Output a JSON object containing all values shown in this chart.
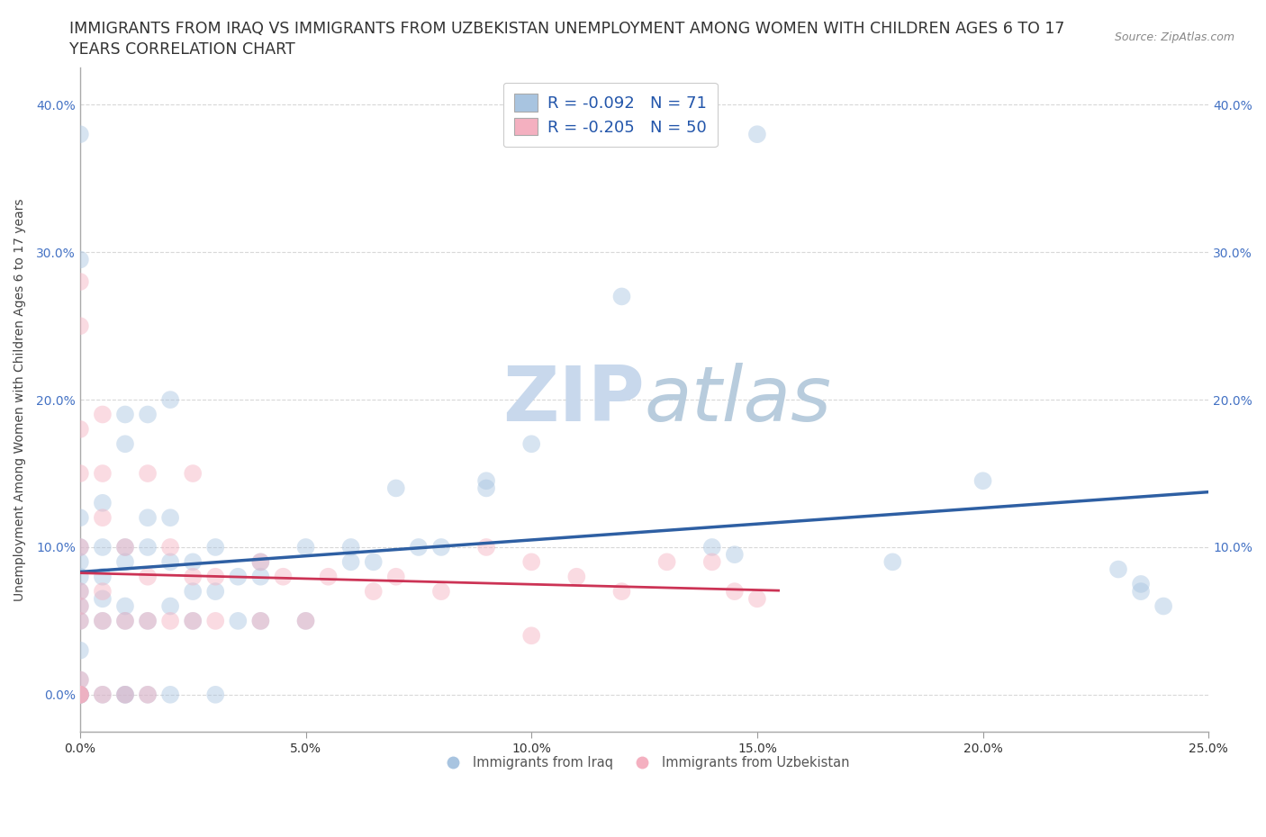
{
  "title_line1": "IMMIGRANTS FROM IRAQ VS IMMIGRANTS FROM UZBEKISTAN UNEMPLOYMENT AMONG WOMEN WITH CHILDREN AGES 6 TO 17",
  "title_line2": "YEARS CORRELATION CHART",
  "source_text": "Source: ZipAtlas.com",
  "ylabel": "Unemployment Among Women with Children Ages 6 to 17 years",
  "iraq_R": -0.092,
  "iraq_N": 71,
  "uzbekistan_R": -0.205,
  "uzbekistan_N": 50,
  "iraq_color": "#a8c4e0",
  "iraq_line_color": "#2e5fa3",
  "uzbekistan_color": "#f4b0c0",
  "uzbekistan_line_color": "#cc3355",
  "watermark_zip": "ZIP",
  "watermark_atlas": "atlas",
  "xmin": 0.0,
  "xmax": 0.25,
  "ymin": -0.025,
  "ymax": 0.425,
  "iraq_x": [
    0.0,
    0.0,
    0.0,
    0.0,
    0.0,
    0.0,
    0.0,
    0.0,
    0.0,
    0.0,
    0.0,
    0.0,
    0.0,
    0.0,
    0.0,
    0.005,
    0.005,
    0.005,
    0.005,
    0.005,
    0.005,
    0.01,
    0.01,
    0.01,
    0.01,
    0.01,
    0.01,
    0.01,
    0.01,
    0.015,
    0.015,
    0.015,
    0.015,
    0.015,
    0.02,
    0.02,
    0.02,
    0.02,
    0.02,
    0.025,
    0.025,
    0.025,
    0.03,
    0.03,
    0.03,
    0.035,
    0.035,
    0.04,
    0.04,
    0.04,
    0.05,
    0.05,
    0.06,
    0.06,
    0.065,
    0.07,
    0.075,
    0.08,
    0.09,
    0.09,
    0.1,
    0.12,
    0.14,
    0.145,
    0.15,
    0.18,
    0.2,
    0.23,
    0.235,
    0.235,
    0.24
  ],
  "iraq_y": [
    0.0,
    0.0,
    0.0,
    0.0,
    0.01,
    0.03,
    0.05,
    0.06,
    0.07,
    0.08,
    0.09,
    0.1,
    0.12,
    0.38,
    0.295,
    0.0,
    0.05,
    0.065,
    0.08,
    0.1,
    0.13,
    0.0,
    0.0,
    0.05,
    0.06,
    0.09,
    0.1,
    0.17,
    0.19,
    0.0,
    0.05,
    0.1,
    0.12,
    0.19,
    0.0,
    0.06,
    0.09,
    0.12,
    0.2,
    0.05,
    0.07,
    0.09,
    0.0,
    0.07,
    0.1,
    0.05,
    0.08,
    0.05,
    0.08,
    0.09,
    0.05,
    0.1,
    0.09,
    0.1,
    0.09,
    0.14,
    0.1,
    0.1,
    0.14,
    0.145,
    0.17,
    0.27,
    0.1,
    0.095,
    0.38,
    0.09,
    0.145,
    0.085,
    0.075,
    0.07,
    0.06
  ],
  "uzbekistan_x": [
    0.0,
    0.0,
    0.0,
    0.0,
    0.0,
    0.0,
    0.0,
    0.0,
    0.0,
    0.0,
    0.0,
    0.0,
    0.0,
    0.005,
    0.005,
    0.005,
    0.005,
    0.005,
    0.005,
    0.01,
    0.01,
    0.01,
    0.015,
    0.015,
    0.015,
    0.015,
    0.02,
    0.02,
    0.025,
    0.025,
    0.025,
    0.03,
    0.03,
    0.04,
    0.04,
    0.045,
    0.05,
    0.055,
    0.065,
    0.07,
    0.08,
    0.09,
    0.1,
    0.1,
    0.11,
    0.12,
    0.13,
    0.14,
    0.145,
    0.15
  ],
  "uzbekistan_y": [
    0.0,
    0.0,
    0.0,
    0.0,
    0.01,
    0.05,
    0.06,
    0.07,
    0.1,
    0.15,
    0.18,
    0.25,
    0.28,
    0.0,
    0.05,
    0.07,
    0.12,
    0.15,
    0.19,
    0.0,
    0.05,
    0.1,
    0.0,
    0.05,
    0.08,
    0.15,
    0.05,
    0.1,
    0.05,
    0.08,
    0.15,
    0.05,
    0.08,
    0.05,
    0.09,
    0.08,
    0.05,
    0.08,
    0.07,
    0.08,
    0.07,
    0.1,
    0.04,
    0.09,
    0.08,
    0.07,
    0.09,
    0.09,
    0.07,
    0.065
  ],
  "xticks": [
    0.0,
    0.05,
    0.1,
    0.15,
    0.2,
    0.25
  ],
  "xtick_labels": [
    "0.0%",
    "5.0%",
    "10.0%",
    "15.0%",
    "20.0%",
    "25.0%"
  ],
  "yticks": [
    0.0,
    0.1,
    0.2,
    0.3,
    0.4
  ],
  "ytick_labels_left": [
    "0.0%",
    "10.0%",
    "20.0%",
    "30.0%",
    "40.0%"
  ],
  "ytick_labels_right": [
    "",
    "10.0%",
    "20.0%",
    "30.0%",
    "40.0%"
  ],
  "grid_color": "#c8c8c8",
  "background_color": "#ffffff",
  "title_fontsize": 12.5,
  "axis_label_fontsize": 10,
  "tick_fontsize": 10,
  "legend_fontsize": 13,
  "scatter_size": 200,
  "scatter_alpha": 0.45,
  "iraq_legend": "Immigrants from Iraq",
  "uzbekistan_legend": "Immigrants from Uzbekistan"
}
